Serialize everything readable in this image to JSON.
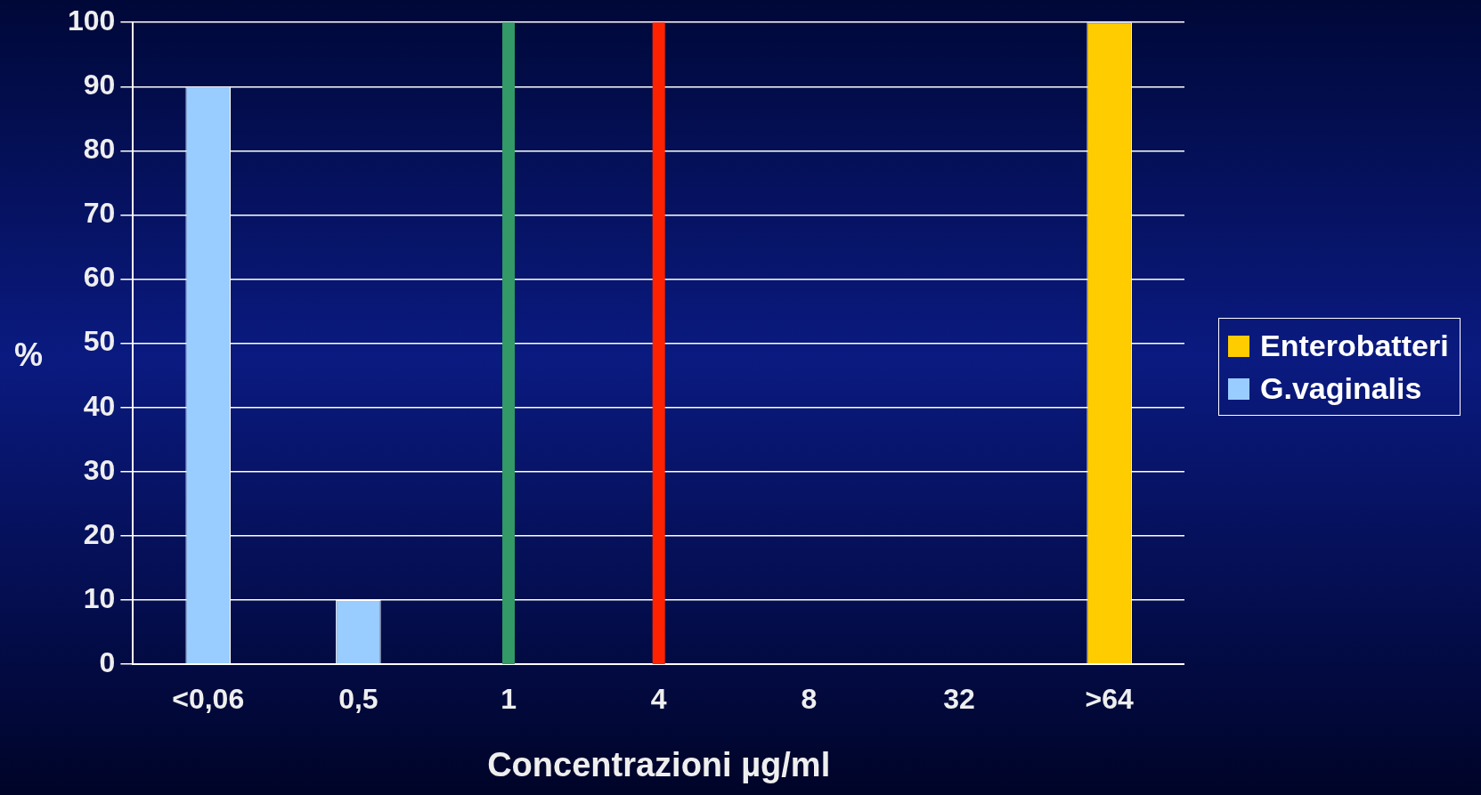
{
  "chart_data": {
    "type": "bar",
    "xlabel": "Concentrazioni µg/ml",
    "ylabel": "%",
    "categories": [
      "<0,06",
      "0,5",
      "1",
      "4",
      "8",
      "32",
      ">64"
    ],
    "series": [
      {
        "name": "Enterobatteri",
        "color": "#ffcc00",
        "values": [
          0,
          0,
          0,
          0,
          0,
          0,
          100
        ]
      },
      {
        "name": "G.vaginalis",
        "color": "#99ccff",
        "values": [
          90,
          10,
          0,
          0,
          0,
          0,
          0
        ]
      }
    ],
    "stacked": true,
    "ylim": [
      0,
      100
    ],
    "yticks": [
      0,
      10,
      20,
      30,
      40,
      50,
      60,
      70,
      80,
      90,
      100
    ],
    "grid": "y",
    "legend": "right",
    "ref_lines": [
      {
        "axis": "x",
        "value": "1",
        "color": "#339966"
      },
      {
        "axis": "x",
        "value": "4",
        "color": "#ff2200"
      }
    ]
  }
}
